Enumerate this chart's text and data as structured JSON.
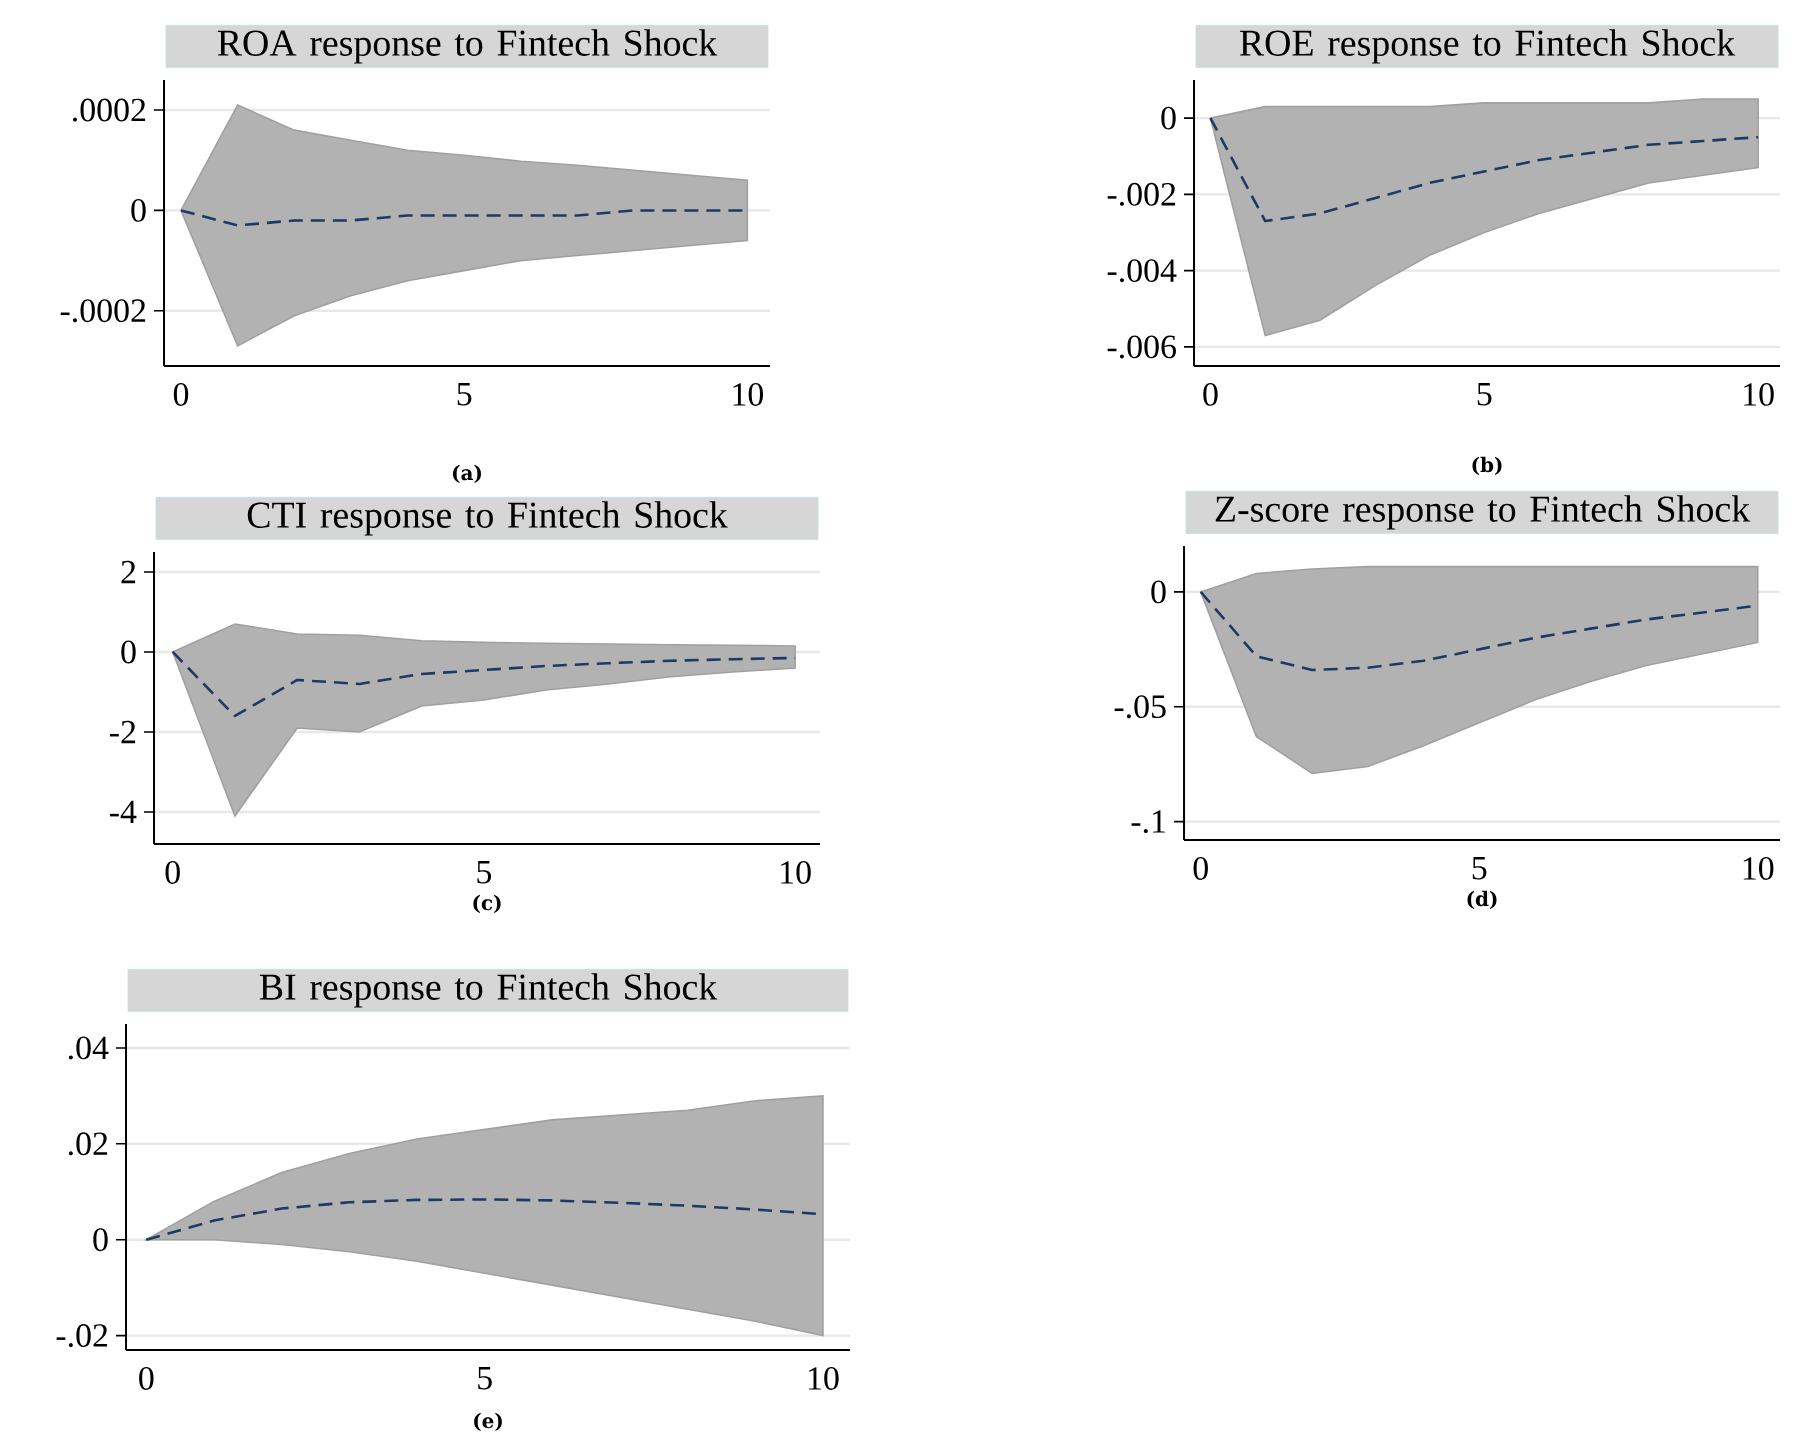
{
  "chart_data": [
    {
      "type": "line",
      "title": "ROA response to Fintech Shock",
      "annotations": [
        "(a)"
      ],
      "x": [
        0,
        1,
        2,
        3,
        4,
        5,
        6,
        7,
        8,
        9,
        10
      ],
      "xlim": [
        -0.3,
        10.4
      ],
      "xticks": [
        0,
        5,
        10
      ],
      "ylim": [
        -0.00031,
        0.00026
      ],
      "yticks": [
        {
          "value": -0.0002,
          "label": "-.0002"
        },
        0,
        {
          "value": 0.0002,
          "label": ".0002"
        }
      ],
      "grid": "y",
      "line_style": "dashed",
      "series": [
        {
          "color": "#1c3a64",
          "values": [
            0,
            -3e-05,
            -2e-05,
            -2e-05,
            -1e-05,
            -1e-05,
            -1e-05,
            -1e-05,
            0,
            0,
            0
          ],
          "upper": [
            0,
            0.00021,
            0.00016,
            0.00014,
            0.00012,
            0.00011,
            9.8e-05,
            9e-05,
            8e-05,
            7e-05,
            6e-05
          ],
          "lower": [
            0,
            -0.00027,
            -0.00021,
            -0.00017,
            -0.00014,
            -0.00012,
            -0.0001,
            -9e-05,
            -8e-05,
            -7e-05,
            -6e-05
          ]
        }
      ]
    },
    {
      "type": "line",
      "title": "ROE response to Fintech Shock",
      "annotations": [
        "(b)"
      ],
      "x": [
        0,
        1,
        2,
        3,
        4,
        5,
        6,
        7,
        8,
        9,
        10
      ],
      "xlim": [
        -0.3,
        10.4
      ],
      "xticks": [
        0,
        5,
        10
      ],
      "ylim": [
        -0.0065,
        0.001
      ],
      "yticks": [
        {
          "value": -0.006,
          "label": "-.006"
        },
        {
          "value": -0.004,
          "label": "-.004"
        },
        {
          "value": -0.002,
          "label": "-.002"
        },
        0
      ],
      "grid": "y",
      "line_style": "dashed",
      "series": [
        {
          "color": "#1c3a64",
          "values": [
            0,
            -0.0027,
            -0.0025,
            -0.0021,
            -0.0017,
            -0.0014,
            -0.0011,
            -0.0009,
            -0.0007,
            -0.0006,
            -0.0005
          ],
          "upper": [
            0,
            0.0003,
            0.0003,
            0.0003,
            0.0003,
            0.0004,
            0.0004,
            0.0004,
            0.0004,
            0.0005,
            0.0005
          ],
          "lower": [
            0,
            -0.0057,
            -0.0053,
            -0.0044,
            -0.0036,
            -0.003,
            -0.0025,
            -0.0021,
            -0.0017,
            -0.0015,
            -0.0013
          ]
        }
      ]
    },
    {
      "type": "line",
      "title": "CTI response to Fintech Shock",
      "annotations": [
        "(c)"
      ],
      "x": [
        0,
        1,
        2,
        3,
        4,
        5,
        6,
        7,
        8,
        9,
        10
      ],
      "xlim": [
        -0.3,
        10.4
      ],
      "xticks": [
        0,
        5,
        10
      ],
      "ylim": [
        -4.8,
        2.5
      ],
      "yticks": [
        -4,
        -2,
        0,
        2
      ],
      "grid": "y",
      "line_style": "dashed",
      "series": [
        {
          "color": "#1c3a64",
          "values": [
            0,
            -1.6,
            -0.7,
            -0.8,
            -0.55,
            -0.45,
            -0.35,
            -0.28,
            -0.22,
            -0.18,
            -0.15
          ],
          "upper": [
            0,
            0.7,
            0.45,
            0.42,
            0.28,
            0.24,
            0.22,
            0.2,
            0.18,
            0.17,
            0.15
          ],
          "lower": [
            0,
            -4.1,
            -1.9,
            -2.0,
            -1.35,
            -1.2,
            -0.95,
            -0.8,
            -0.62,
            -0.5,
            -0.4
          ]
        }
      ]
    },
    {
      "type": "line",
      "title": "Z-score response to Fintech Shock",
      "annotations": [
        "(d)"
      ],
      "x": [
        0,
        1,
        2,
        3,
        4,
        5,
        6,
        7,
        8,
        9,
        10
      ],
      "xlim": [
        -0.3,
        10.4
      ],
      "xticks": [
        0,
        5,
        10
      ],
      "ylim": [
        -0.108,
        0.02
      ],
      "yticks": [
        {
          "value": -0.1,
          "label": "-.1"
        },
        {
          "value": -0.05,
          "label": "-.05"
        },
        0
      ],
      "grid": "y",
      "line_style": "dashed",
      "series": [
        {
          "color": "#1c3a64",
          "values": [
            0,
            -0.028,
            -0.034,
            -0.033,
            -0.03,
            -0.025,
            -0.02,
            -0.016,
            -0.012,
            -0.009,
            -0.006
          ],
          "upper": [
            0,
            0.008,
            0.01,
            0.011,
            0.011,
            0.011,
            0.011,
            0.011,
            0.011,
            0.011,
            0.011
          ],
          "lower": [
            0,
            -0.063,
            -0.079,
            -0.076,
            -0.067,
            -0.057,
            -0.047,
            -0.039,
            -0.032,
            -0.027,
            -0.022
          ]
        }
      ]
    },
    {
      "type": "line",
      "title": "BI response to Fintech Shock",
      "annotations": [
        "(e)"
      ],
      "x": [
        0,
        1,
        2,
        3,
        4,
        5,
        6,
        7,
        8,
        9,
        10
      ],
      "xlim": [
        -0.3,
        10.4
      ],
      "xticks": [
        0,
        5,
        10
      ],
      "ylim": [
        -0.023,
        0.045
      ],
      "yticks": [
        {
          "value": -0.02,
          "label": "-.02"
        },
        0,
        {
          "value": 0.02,
          "label": ".02"
        },
        {
          "value": 0.04,
          "label": ".04"
        }
      ],
      "grid": "y",
      "line_style": "dashed",
      "series": [
        {
          "color": "#1c3a64",
          "values": [
            0,
            0.004,
            0.0065,
            0.0078,
            0.0083,
            0.0084,
            0.0082,
            0.0077,
            0.0071,
            0.0063,
            0.0053
          ],
          "upper": [
            0,
            0.008,
            0.014,
            0.018,
            0.021,
            0.023,
            0.025,
            0.026,
            0.027,
            0.029,
            0.03
          ],
          "lower": [
            0,
            0,
            -0.001,
            -0.0025,
            -0.0045,
            -0.007,
            -0.0095,
            -0.012,
            -0.0145,
            -0.017,
            -0.02
          ]
        }
      ]
    }
  ]
}
